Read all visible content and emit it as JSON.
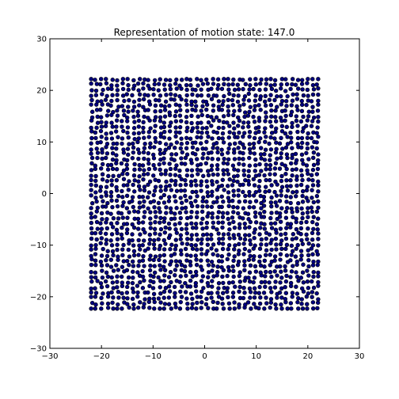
{
  "chart_data": {
    "type": "scatter",
    "title": "Representation of motion state: 147.0",
    "xlabel": "",
    "ylabel": "",
    "xlim": [
      -30,
      30
    ],
    "ylim": [
      -30,
      30
    ],
    "xticks": [
      -30,
      -20,
      -10,
      0,
      10,
      20,
      30
    ],
    "yticks": [
      -30,
      -20,
      -10,
      0,
      10,
      20,
      30
    ],
    "xtick_labels": [
      "−30",
      "−20",
      "−10",
      "0",
      "10",
      "20",
      "30"
    ],
    "ytick_labels": [
      "−30",
      "−20",
      "−10",
      "0",
      "10",
      "20",
      "30"
    ],
    "grid": false,
    "marker_color": "#000080",
    "point_region": {
      "x_range": [
        -22,
        22
      ],
      "y_range": [
        -22.3,
        22.2
      ],
      "columns": 44,
      "rows": 44,
      "approx_spacing": 1.0,
      "approx_count": 1936
    }
  }
}
